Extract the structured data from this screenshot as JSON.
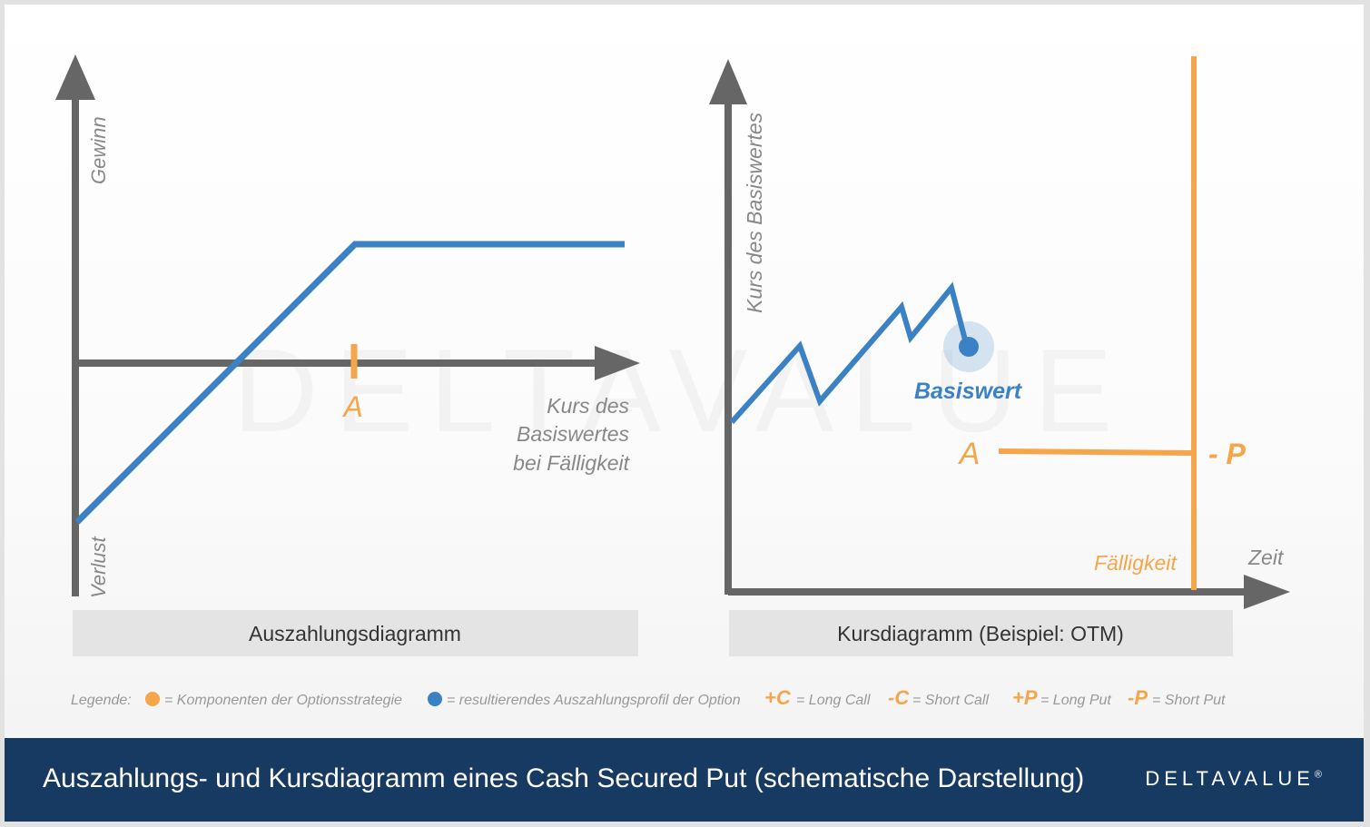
{
  "left_diagram": {
    "y_axis_top_label": "Gewinn",
    "y_axis_bottom_label": "Verlust",
    "strike_label": "A",
    "x_axis_label_lines": [
      "Kurs des",
      "Basiswertes",
      "bei Fälligkeit"
    ],
    "caption": "Auszahlungsdiagramm"
  },
  "right_diagram": {
    "y_axis_label": "Kurs des Basiswertes",
    "x_axis_label": "Zeit",
    "underlying_label": "Basiswert",
    "strike_label": "A",
    "position_label": "- P",
    "expiry_label": "Fälligkeit",
    "caption": "Kursdiagramm (Beispiel: OTM)"
  },
  "legend": {
    "title": "Legende:",
    "items": [
      {
        "marker": "orange-dot",
        "text": "= Komponenten der Optionsstrategie"
      },
      {
        "marker": "blue-dot",
        "text": "= resultierendes Auszahlungsprofil der Option"
      },
      {
        "marker": "+C",
        "text": "= Long Call"
      },
      {
        "marker": "-C",
        "text": "= Short Call"
      },
      {
        "marker": "+P",
        "text": "= Long Put"
      },
      {
        "marker": "-P",
        "text": "= Short Put"
      }
    ]
  },
  "watermark": "DELTAVALUE",
  "footer": {
    "title": "Auszahlungs- und Kursdiagramm eines Cash Secured Put (schematische Darstellung)",
    "brand": "DELTAVALUE"
  },
  "colors": {
    "axis": "#666666",
    "payoff_blue": "#3b82c4",
    "component_orange": "#f5a54a",
    "caption_bg": "#e4e4e4",
    "footer_bg": "#173a63"
  }
}
